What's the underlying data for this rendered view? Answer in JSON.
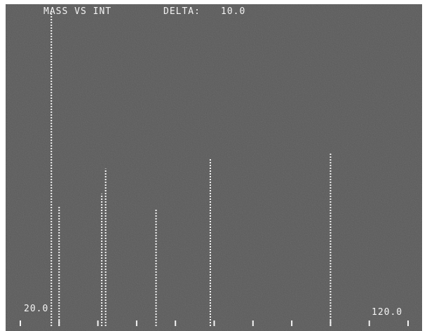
{
  "screen": {
    "title": "MASS VS INT",
    "delta_label": "DELTA:",
    "delta_value": "10.0",
    "x_start_label": "20.0",
    "x_end_label": "120.0"
  },
  "colors": {
    "background": "#5a5a5a",
    "foreground": "#f4f4f4",
    "frame": "#ffffff"
  },
  "chart_data": {
    "type": "bar",
    "title": "MASS VS INT",
    "xlabel": "",
    "ylabel": "",
    "xlim": [
      20,
      120
    ],
    "ylim": [
      0,
      100
    ],
    "tick_interval": 10,
    "tick_labels": [
      "20.0",
      "120.0"
    ],
    "x": [
      28,
      30,
      41,
      42,
      55,
      69,
      100
    ],
    "values": [
      100,
      38,
      42,
      50,
      37,
      53,
      55
    ],
    "grid": false,
    "legend": "none"
  }
}
